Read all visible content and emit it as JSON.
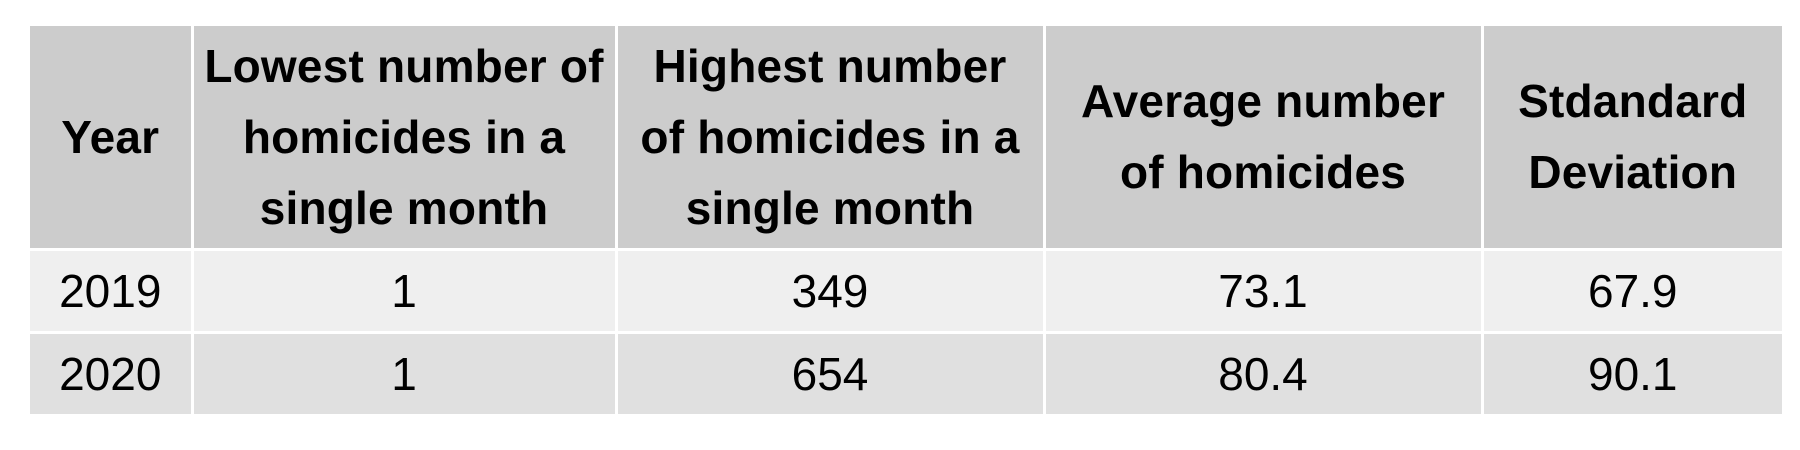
{
  "table": {
    "headers": [
      "Year",
      "Lowest number of homicides in a single month",
      "Highest number of homicides in a single month",
      "Average number of homicides",
      "Stdandard Deviation"
    ],
    "rows": [
      [
        "2019",
        "1",
        "349",
        "73.1",
        "67.9"
      ],
      [
        "2020",
        "1",
        "654",
        "80.4",
        "90.1"
      ]
    ]
  },
  "colors": {
    "header_bg": "#cccccc",
    "row1_bg": "#efefef",
    "row2_bg": "#e0e0e0",
    "grid_lines": "#ffffff"
  }
}
